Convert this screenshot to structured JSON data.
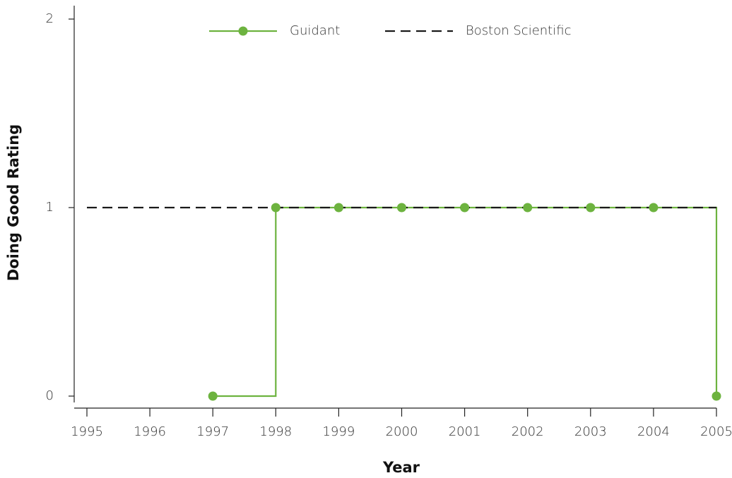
{
  "chart_data": {
    "type": "line",
    "step": "post",
    "xlabel": "Year",
    "ylabel": "Doing Good Rating",
    "xlim": [
      1995,
      2005
    ],
    "xticks": [
      1995,
      1996,
      1997,
      1998,
      1999,
      2000,
      2001,
      2002,
      2003,
      2004,
      2005
    ],
    "ylim": [
      0,
      2
    ],
    "yticks": [
      0,
      1,
      2
    ],
    "legend": "upper center",
    "series": [
      {
        "name": "Guidant",
        "color": "#6db33f",
        "dash": "solid",
        "markers": true,
        "x": [
          1997,
          1998,
          1999,
          2000,
          2001,
          2002,
          2003,
          2004,
          2005
        ],
        "values": [
          0,
          1,
          1,
          1,
          1,
          1,
          1,
          1,
          0
        ]
      },
      {
        "name": "Boston Scientific",
        "color": "#1a1a1a",
        "dash": "dashed",
        "markers": false,
        "x": [
          1995,
          1996,
          1997,
          1998,
          1999,
          2000,
          2001,
          2002,
          2003,
          2004,
          2005
        ],
        "values": [
          1,
          1,
          1,
          1,
          1,
          1,
          1,
          1,
          1,
          1,
          1
        ]
      }
    ]
  }
}
